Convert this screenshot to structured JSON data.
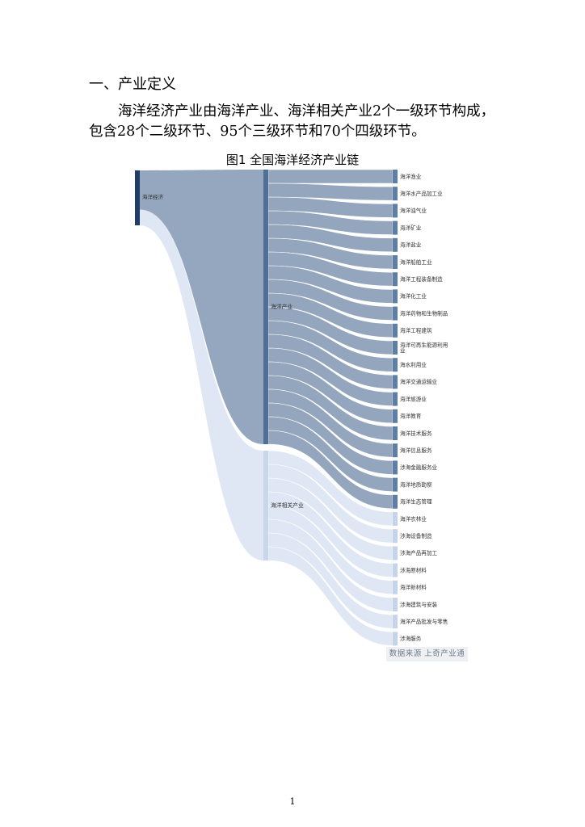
{
  "heading": "一、产业定义",
  "paragraph": "海洋经济产业由海洋产业、海洋相关产业2个一级环节构成，包含28个二级环节、95个三级环节和70个四级环节。",
  "figure_title": "图1 全国海洋经济产业链",
  "source_label": "数据来源 上奇产业通",
  "page_number": "1",
  "colors": {
    "root": "#1f3d66",
    "marine": "#4f6f95",
    "related": "#c9d7ec",
    "flow_dark": "#8ea2ba",
    "flow_light": "#dde6f3",
    "leaf_dark": "#5e7ea3",
    "leaf_light": "#c6d4ea"
  },
  "chart_data": {
    "type": "sankey",
    "root": "海洋经济",
    "level1": [
      {
        "name": "海洋产业",
        "children": [
          "海洋渔业",
          "海洋水产品加工业",
          "海洋油气业",
          "海洋矿业",
          "海洋盐业",
          "海洋船舶工业",
          "海洋工程装备制造",
          "海洋化工业",
          "海洋药物和生物制品",
          "海洋工程建筑",
          "海洋可再生能源利用业",
          "海水利用业",
          "海洋交通运输业",
          "海洋旅游业",
          "海洋教育",
          "海洋技术服务",
          "海洋信息服务",
          "涉海金融服务业",
          "海洋地质勘察",
          "海洋生态管理"
        ]
      },
      {
        "name": "海洋相关产业",
        "children": [
          "海洋农林业",
          "涉海设备制造",
          "涉海产品再加工",
          "涉海原材料",
          "海洋新材料",
          "涉海建筑与安装",
          "海洋产品批发与零售",
          "涉海服务"
        ]
      }
    ]
  }
}
